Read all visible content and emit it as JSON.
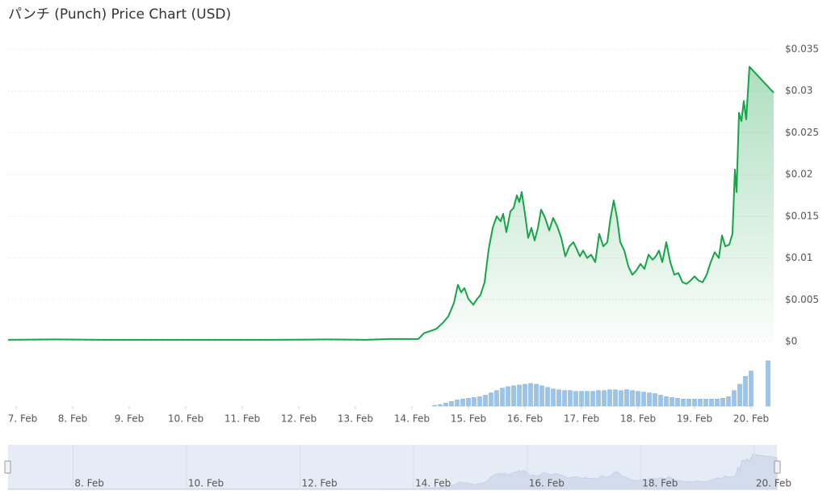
{
  "chart_data": {
    "type": "line",
    "title": "パンチ (Punch) Price Chart (USD)",
    "xlim": [
      6.857,
      20.4
    ],
    "xticks": [
      {
        "value": 7,
        "label": "7. Feb"
      },
      {
        "value": 8,
        "label": "8. Feb"
      },
      {
        "value": 9,
        "label": "9. Feb"
      },
      {
        "value": 10,
        "label": "10. Feb"
      },
      {
        "value": 11,
        "label": "11. Feb"
      },
      {
        "value": 12,
        "label": "12. Feb"
      },
      {
        "value": 13,
        "label": "13. Feb"
      },
      {
        "value": 14,
        "label": "14. Feb"
      },
      {
        "value": 15,
        "label": "15. Feb"
      },
      {
        "value": 16,
        "label": "16. Feb"
      },
      {
        "value": 17,
        "label": "17. Feb"
      },
      {
        "value": 18,
        "label": "18. Feb"
      },
      {
        "value": 19,
        "label": "19. Feb"
      },
      {
        "value": 20,
        "label": "20. Feb"
      }
    ],
    "ylim": [
      0,
      0.035
    ],
    "yticks": [
      {
        "value": 0,
        "label": "$0"
      },
      {
        "value": 0.005,
        "label": "$0.005"
      },
      {
        "value": 0.01,
        "label": "$0.01"
      },
      {
        "value": 0.015,
        "label": "$0.015"
      },
      {
        "value": 0.02,
        "label": "$0.02"
      },
      {
        "value": 0.025,
        "label": "$0.025"
      },
      {
        "value": 0.03,
        "label": "$0.03"
      },
      {
        "value": 0.035,
        "label": "$0.035"
      }
    ],
    "y2lim": [
      0,
      60
    ],
    "grid": true,
    "navigator_xticks": [
      {
        "value": 8,
        "label": "8. Feb"
      },
      {
        "value": 10,
        "label": "10. Feb"
      },
      {
        "value": 12,
        "label": "12. Feb"
      },
      {
        "value": 14,
        "label": "14. Feb"
      },
      {
        "value": 16,
        "label": "16. Feb"
      },
      {
        "value": 18,
        "label": "18. Feb"
      },
      {
        "value": 20,
        "label": "20. Feb"
      }
    ],
    "series": [
      {
        "type": "line",
        "color": "#18a348",
        "x": [
          6.857,
          7.7,
          8.5,
          9.5,
          10.5,
          11.5,
          12.5,
          13.2,
          13.6,
          14.0,
          14.114,
          14.214,
          14.429,
          14.543,
          14.643,
          14.743,
          14.814,
          14.871,
          14.929,
          15.0,
          15.086,
          15.143,
          15.214,
          15.286,
          15.357,
          15.429,
          15.5,
          15.571,
          15.614,
          15.671,
          15.743,
          15.8,
          15.857,
          15.9,
          15.943,
          16.0,
          16.057,
          16.114,
          16.171,
          16.229,
          16.286,
          16.357,
          16.429,
          16.5,
          16.571,
          16.643,
          16.714,
          16.786,
          16.857,
          16.914,
          16.971,
          17.029,
          17.1,
          17.171,
          17.243,
          17.314,
          17.386,
          17.457,
          17.514,
          17.571,
          17.629,
          17.686,
          17.757,
          17.829,
          17.9,
          17.971,
          18.043,
          18.114,
          18.186,
          18.257,
          18.314,
          18.371,
          18.429,
          18.5,
          18.571,
          18.643,
          18.714,
          18.786,
          18.857,
          18.929,
          19.0,
          19.071,
          19.143,
          19.214,
          19.286,
          19.357,
          19.429,
          19.486,
          19.543,
          19.614,
          19.671,
          19.714,
          19.743,
          19.786,
          19.829,
          19.871,
          19.914,
          19.971,
          20.4
        ],
        "values": [
          0.0002,
          0.00025,
          0.0002,
          0.0002,
          0.0002,
          0.0002,
          0.00025,
          0.0002,
          0.0003,
          0.0003,
          0.0003,
          0.001,
          0.0015,
          0.0022,
          0.003,
          0.0046,
          0.0068,
          0.0059,
          0.0064,
          0.0051,
          0.0044,
          0.005,
          0.0056,
          0.0071,
          0.011,
          0.0136,
          0.015,
          0.0144,
          0.0153,
          0.0131,
          0.0156,
          0.016,
          0.0175,
          0.0167,
          0.0179,
          0.0153,
          0.0124,
          0.0136,
          0.0121,
          0.0136,
          0.0158,
          0.0148,
          0.0133,
          0.0148,
          0.0138,
          0.0124,
          0.0102,
          0.0114,
          0.0119,
          0.0111,
          0.0102,
          0.0109,
          0.01,
          0.0104,
          0.0095,
          0.0129,
          0.0114,
          0.0119,
          0.0148,
          0.0169,
          0.0148,
          0.0119,
          0.0109,
          0.009,
          0.008,
          0.0085,
          0.0093,
          0.0087,
          0.0104,
          0.0098,
          0.0102,
          0.0109,
          0.0095,
          0.0119,
          0.0095,
          0.008,
          0.0082,
          0.0071,
          0.0069,
          0.0073,
          0.0078,
          0.0073,
          0.0071,
          0.008,
          0.0095,
          0.0107,
          0.01,
          0.0127,
          0.0114,
          0.0116,
          0.0129,
          0.0206,
          0.0179,
          0.0274,
          0.0264,
          0.0288,
          0.0266,
          0.0329,
          0.0298
        ]
      },
      {
        "type": "bar",
        "axis": "y2",
        "color": "#9cc3e8",
        "x": [
          14.4,
          14.5,
          14.6,
          14.7,
          14.8,
          14.9,
          15.0,
          15.1,
          15.2,
          15.3,
          15.4,
          15.5,
          15.6,
          15.7,
          15.8,
          15.9,
          16.0,
          16.1,
          16.2,
          16.3,
          16.4,
          16.5,
          16.6,
          16.7,
          16.8,
          16.9,
          17.0,
          17.1,
          17.2,
          17.3,
          17.4,
          17.5,
          17.6,
          17.7,
          17.8,
          17.9,
          18.0,
          18.1,
          18.2,
          18.3,
          18.4,
          18.5,
          18.6,
          18.7,
          18.8,
          18.9,
          19.0,
          19.1,
          19.2,
          19.3,
          19.4,
          19.5,
          19.6,
          19.7,
          19.8,
          19.9,
          20.0,
          20.3
        ],
        "values": [
          1,
          2,
          4,
          6,
          8,
          9,
          10,
          11,
          12,
          14,
          17,
          20,
          23,
          25,
          26,
          27,
          28,
          29,
          28,
          26,
          24,
          22,
          21,
          20,
          20,
          19,
          19,
          19,
          19,
          20,
          20,
          21,
          21,
          20,
          21,
          20,
          19,
          18,
          17,
          16,
          14,
          12,
          11,
          10,
          9,
          9,
          9,
          9,
          9,
          9,
          9,
          10,
          12,
          20,
          28,
          38,
          45,
          58
        ]
      }
    ]
  }
}
